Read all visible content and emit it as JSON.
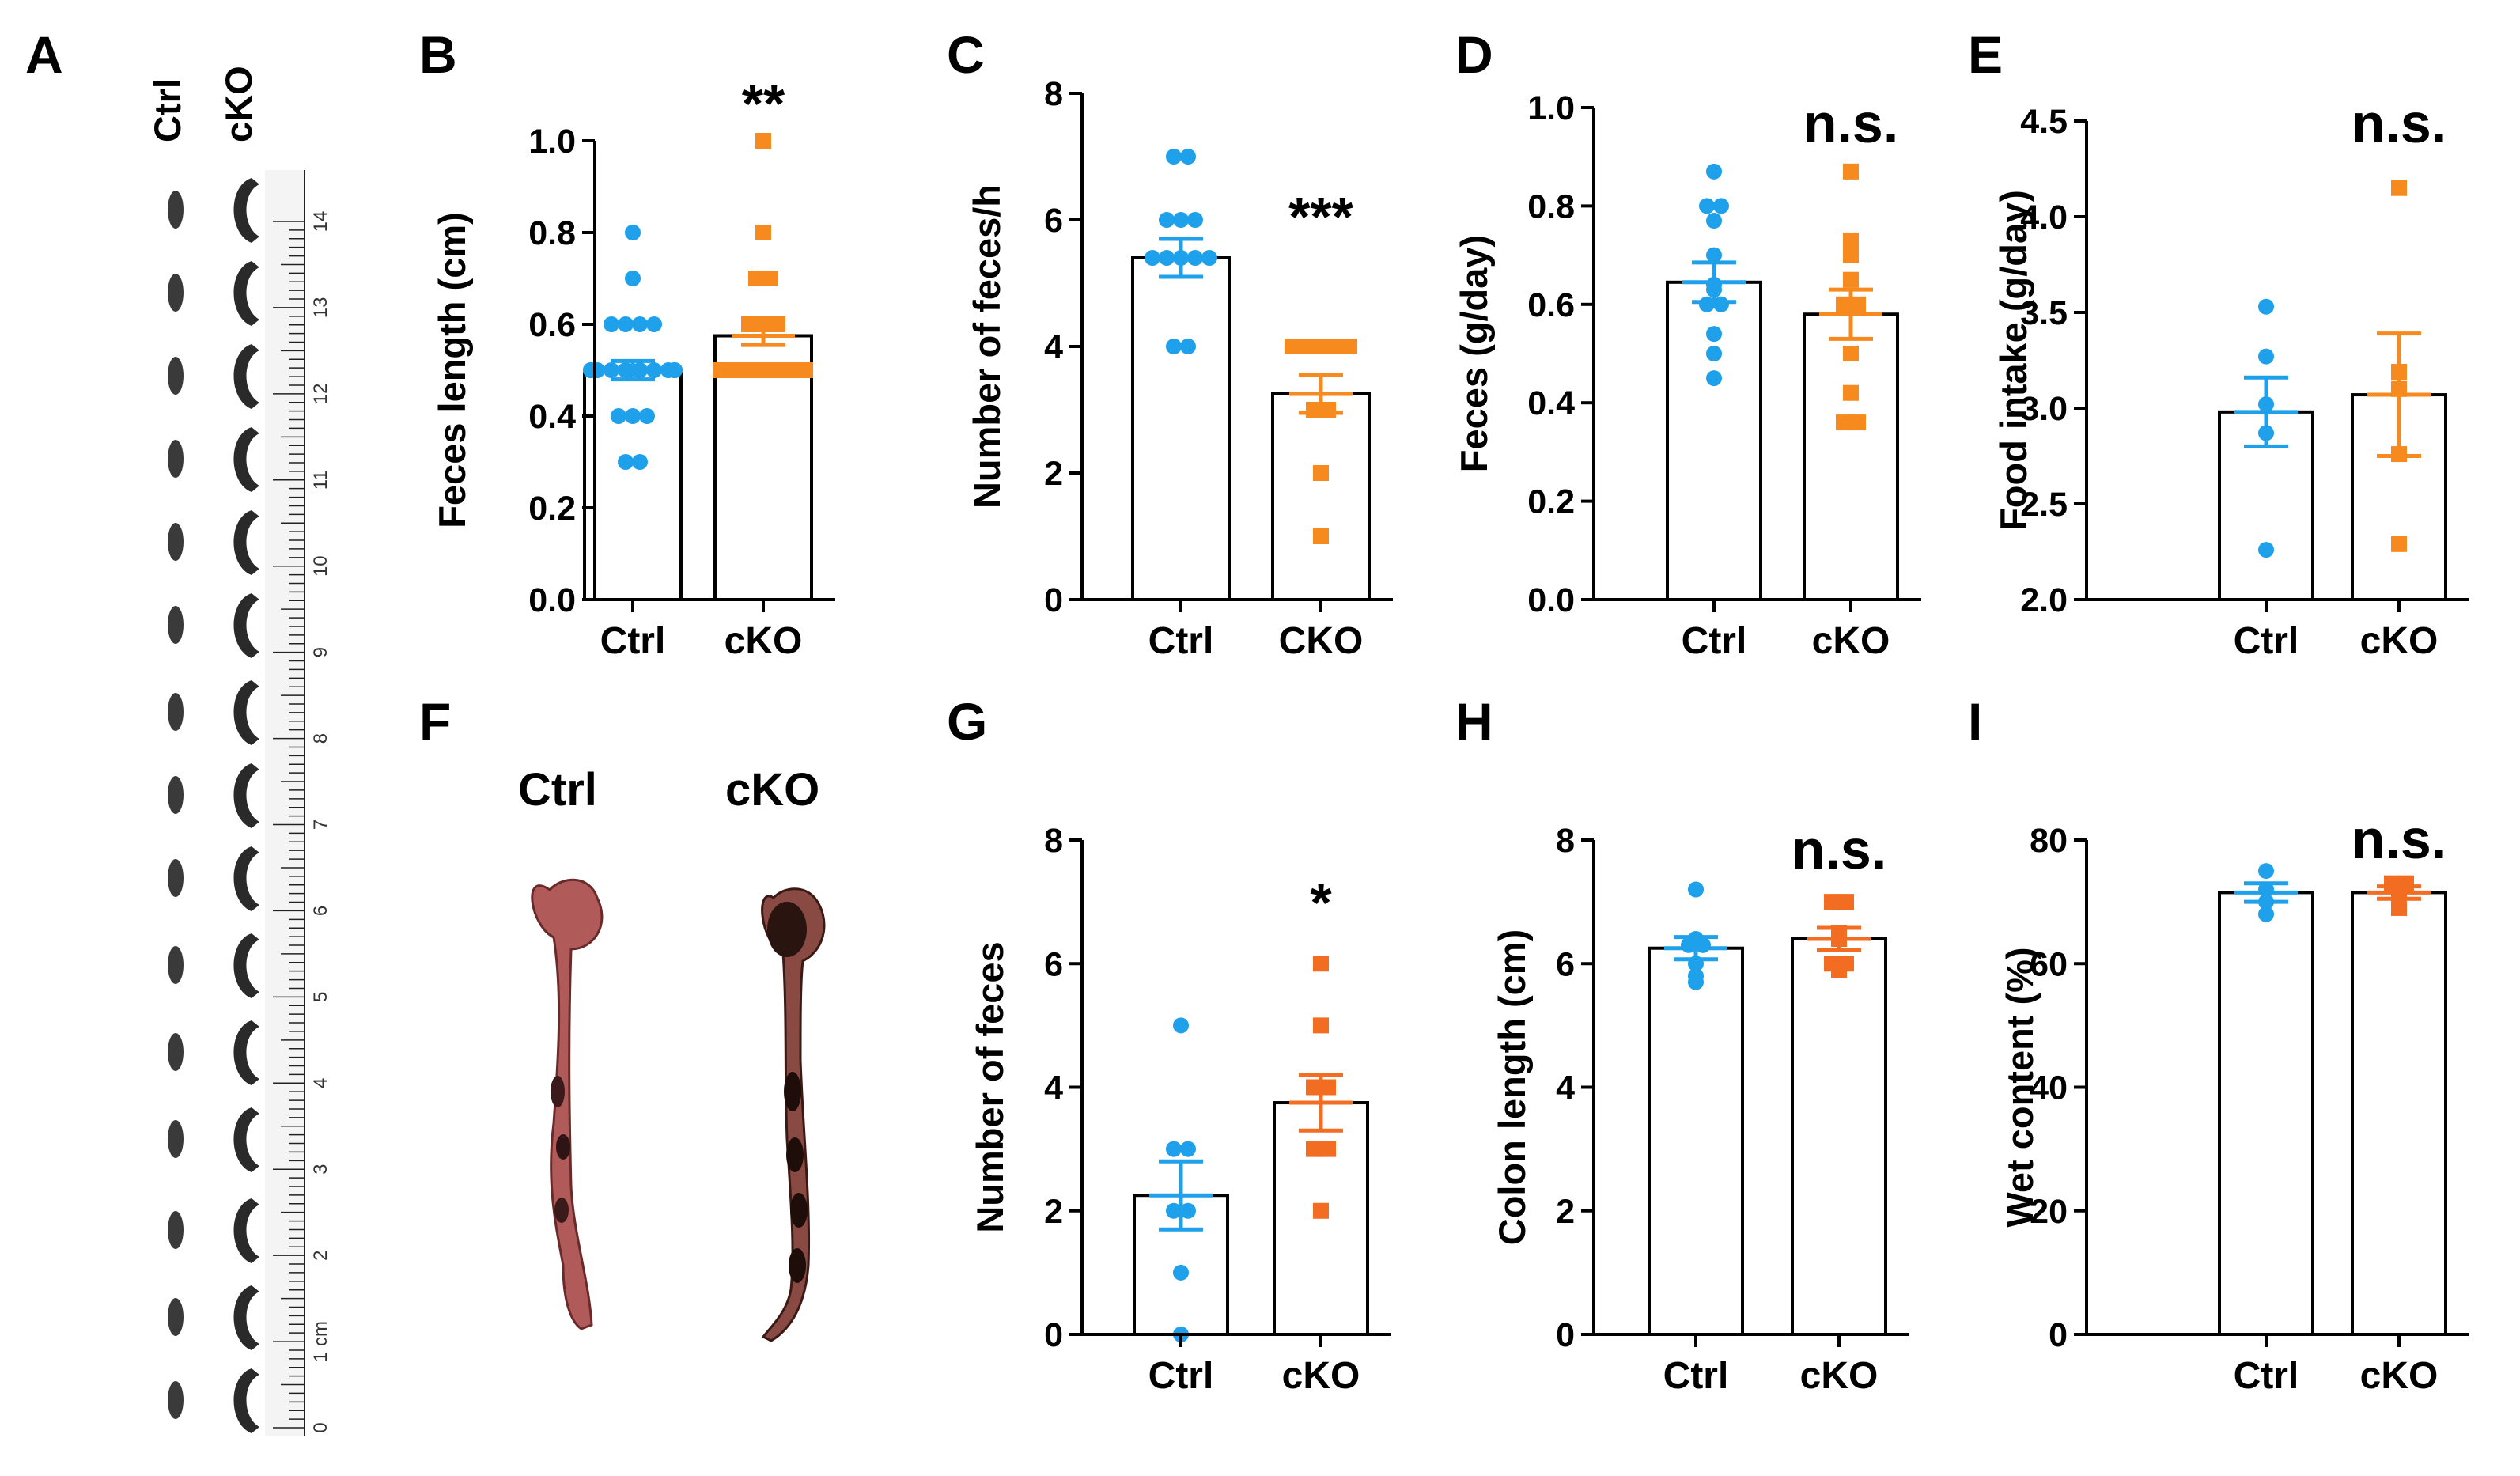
{
  "colors": {
    "ctrl": "#1ea0ea",
    "cko_orange": "#f68a1f",
    "cko_red": "#f26d21"
  },
  "panel_a": {
    "label": "A",
    "col_ctrl": "Ctrl",
    "col_cko": "cKO",
    "ruler_numbers": [
      "14",
      "13",
      "12",
      "11",
      "10",
      "9",
      "8",
      "7",
      "6",
      "5",
      "4",
      "3",
      "2",
      "1 cm",
      "0"
    ]
  },
  "panel_f": {
    "label": "F",
    "col_ctrl": "Ctrl",
    "col_cko": "cKO"
  },
  "chart_data": [
    {
      "id": "B",
      "label": "B",
      "type": "bar",
      "ylabel": "Feces length (cm)",
      "ylim": [
        0,
        1.0
      ],
      "ticks": [
        "0.0",
        "0.2",
        "0.4",
        "0.6",
        "0.8",
        "1.0"
      ],
      "categories": [
        "Ctrl",
        "cKO"
      ],
      "means": [
        0.5,
        0.575
      ],
      "sem": [
        0.02,
        0.02
      ],
      "significance": "**",
      "cko_color": "orange",
      "points": [
        [
          0.3,
          0.3,
          0.4,
          0.4,
          0.4,
          0.5,
          0.5,
          0.5,
          0.5,
          0.5,
          0.5,
          0.5,
          0.5,
          0.5,
          0.5,
          0.5,
          0.5,
          0.6,
          0.6,
          0.6,
          0.6,
          0.7,
          0.8
        ],
        [
          0.5,
          0.5,
          0.5,
          0.5,
          0.5,
          0.5,
          0.5,
          0.5,
          0.5,
          0.5,
          0.5,
          0.5,
          0.5,
          0.6,
          0.6,
          0.6,
          0.7,
          0.7,
          0.8,
          1.0
        ]
      ]
    },
    {
      "id": "C",
      "label": "C",
      "type": "bar",
      "ylabel": "Number of feces/h",
      "ylim": [
        0,
        8
      ],
      "ticks": [
        "0",
        "2",
        "4",
        "6",
        "8"
      ],
      "categories": [
        "Ctrl",
        "CKO"
      ],
      "means": [
        5.4,
        3.25
      ],
      "sem": [
        0.3,
        0.3
      ],
      "significance": "***",
      "cko_color": "orange",
      "points": [
        [
          7,
          7,
          6,
          6,
          6,
          5.4,
          5.4,
          5.4,
          5.4,
          5.4,
          4,
          4
        ],
        [
          4,
          4,
          4,
          4,
          4,
          3,
          3,
          2,
          1
        ]
      ]
    },
    {
      "id": "D",
      "label": "D",
      "type": "bar",
      "ylabel": "Feces (g/day)",
      "ylim": [
        0,
        1.0
      ],
      "ticks": [
        "0.0",
        "0.2",
        "0.4",
        "0.6",
        "0.8",
        "1.0"
      ],
      "categories": [
        "Ctrl",
        "cKO"
      ],
      "means": [
        0.645,
        0.58
      ],
      "sem": [
        0.04,
        0.05
      ],
      "significance": "n.s.",
      "cko_color": "orange",
      "points": [
        [
          0.87,
          0.8,
          0.77,
          0.8,
          0.7,
          0.64,
          0.6,
          0.6,
          0.63,
          0.54,
          0.5,
          0.45
        ],
        [
          0.87,
          0.73,
          0.7,
          0.65,
          0.6,
          0.6,
          0.5,
          0.42,
          0.36,
          0.36
        ]
      ]
    },
    {
      "id": "E",
      "label": "E",
      "type": "bar",
      "ylabel": "Food intake (g/day)",
      "ylim": [
        2.0,
        4.5
      ],
      "ticks": [
        "2.0",
        "2.5",
        "3.0",
        "3.5",
        "4.0",
        "4.5"
      ],
      "categories": [
        "Ctrl",
        "cKO"
      ],
      "means": [
        2.98,
        3.07
      ],
      "sem": [
        0.18,
        0.32
      ],
      "significance": "n.s.",
      "cko_color": "orange",
      "points": [
        [
          3.53,
          3.27,
          3.02,
          2.87,
          2.26
        ],
        [
          4.15,
          3.19,
          3.1,
          2.76,
          2.29
        ]
      ]
    },
    {
      "id": "G",
      "label": "G",
      "type": "bar",
      "ylabel": "Number of feces",
      "ylim": [
        0,
        8
      ],
      "ticks": [
        "0",
        "2",
        "4",
        "6",
        "8"
      ],
      "categories": [
        "Ctrl",
        "cKO"
      ],
      "means": [
        2.25,
        3.75
      ],
      "sem": [
        0.55,
        0.45
      ],
      "significance": "*",
      "cko_color": "red",
      "points": [
        [
          5,
          3,
          3,
          2,
          2,
          1,
          0
        ],
        [
          6,
          5,
          4,
          4,
          3,
          3,
          2
        ]
      ]
    },
    {
      "id": "H",
      "label": "H",
      "type": "bar",
      "ylabel": "Colon length (cm)",
      "ylim": [
        0,
        8
      ],
      "ticks": [
        "0",
        "2",
        "4",
        "6",
        "8"
      ],
      "categories": [
        "Ctrl",
        "cKO"
      ],
      "means": [
        6.25,
        6.4
      ],
      "sem": [
        0.18,
        0.18
      ],
      "significance": "n.s.",
      "cko_color": "red",
      "points": [
        [
          7.2,
          6.4,
          6.3,
          6.3,
          6.0,
          5.8,
          5.7
        ],
        [
          7.0,
          7.0,
          6.5,
          6.4,
          6.0,
          6.0,
          5.9
        ]
      ]
    },
    {
      "id": "I",
      "label": "I",
      "type": "bar",
      "ylabel": "Wet content (%)",
      "ylim": [
        0,
        80
      ],
      "ticks": [
        "0",
        "20",
        "40",
        "60",
        "80"
      ],
      "categories": [
        "Ctrl",
        "cKO"
      ],
      "means": [
        71.5,
        71.5
      ],
      "sem": [
        1.5,
        1.0
      ],
      "significance": "n.s.",
      "cko_color": "red",
      "points": [
        [
          75,
          72,
          70,
          68
        ],
        [
          73,
          73,
          71,
          69
        ]
      ]
    }
  ]
}
